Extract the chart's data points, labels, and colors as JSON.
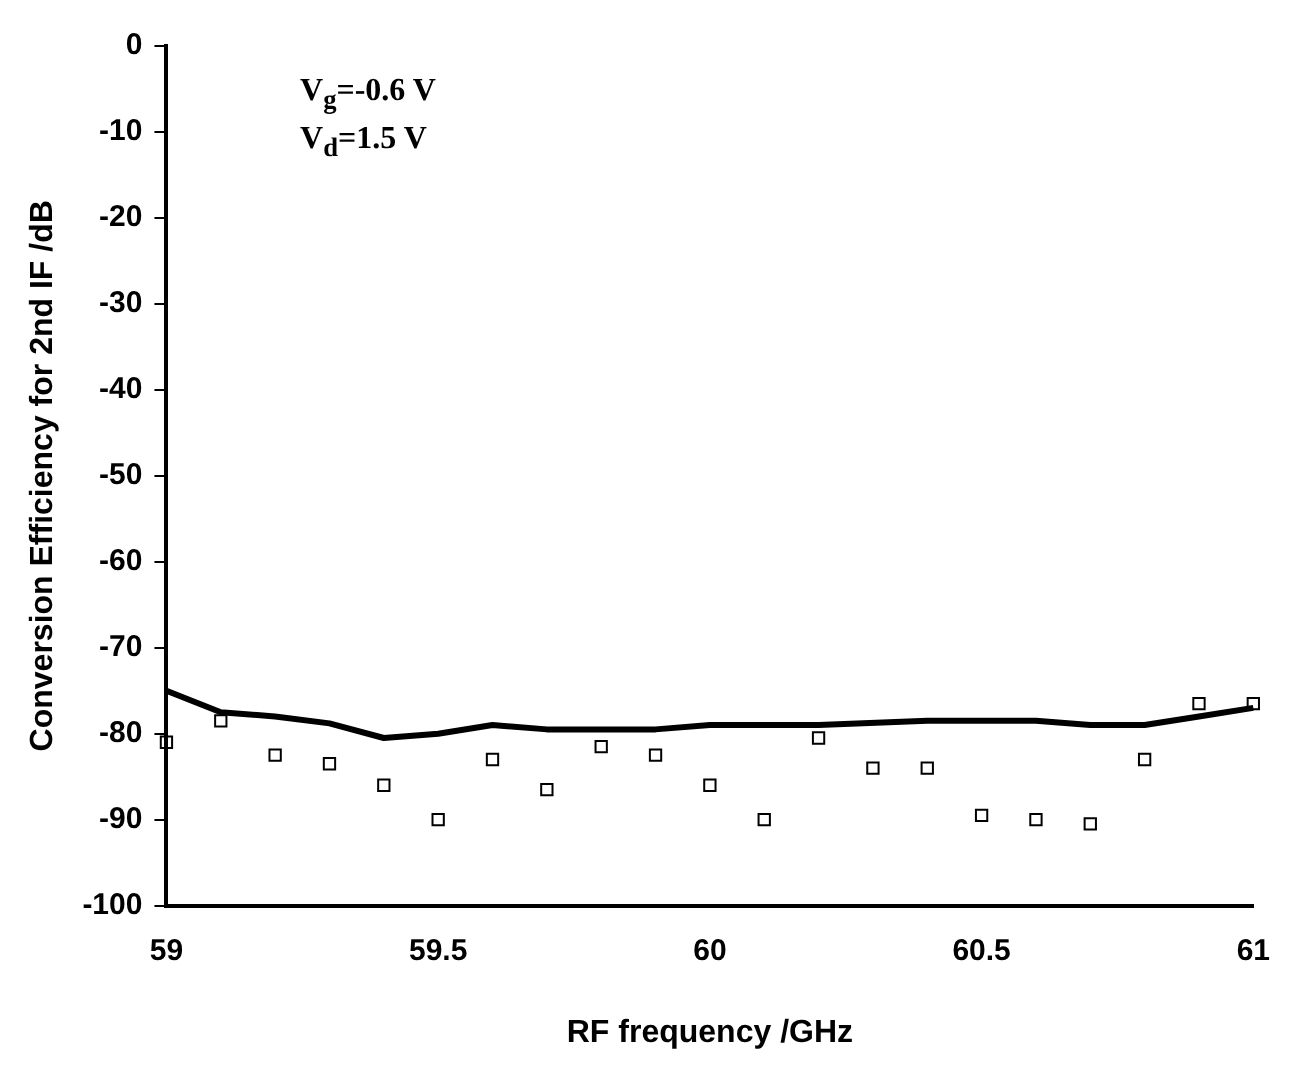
{
  "chart_data": {
    "type": "scatter",
    "xlabel": "RF frequency /GHz",
    "ylabel": "Conversion Efficiency for 2nd IF /dB",
    "annotations": [
      "V$_{g}$=-0.6 V",
      "V$_{d}$=1.5 V"
    ],
    "x": [
      59,
      59.1,
      59.2,
      59.3,
      59.4,
      59.5,
      59.6,
      59.7,
      59.8,
      59.9,
      60,
      60.1,
      60.2,
      60.3,
      60.4,
      60.5,
      60.6,
      60.7,
      60.8,
      60.9,
      61
    ],
    "series": [
      {
        "type": "line",
        "color": "#000000",
        "marker": "none",
        "x": [
          59,
          59.1,
          59.2,
          59.3,
          59.4,
          59.5,
          59.6,
          59.7,
          59.8,
          59.9,
          60,
          60.2,
          60.4,
          60.6,
          60.7,
          60.8,
          60.9,
          61
        ],
        "values": [
          -75,
          -77.5,
          -78,
          -78.8,
          -80.5,
          -80,
          -79,
          -79.5,
          -79.5,
          -79.5,
          -79,
          -79,
          -78.5,
          -78.5,
          -79,
          -79,
          -78,
          -77
        ]
      },
      {
        "type": "scatter",
        "color": "#000000",
        "marker": "square",
        "values": [
          -81,
          -78.5,
          -82.5,
          -83.5,
          -86,
          -90,
          -83,
          -86.5,
          -81.5,
          -82.5,
          -86,
          -90,
          -80.5,
          -84,
          -84,
          -89.5,
          -90,
          -90.5,
          -83,
          -76.5,
          -76.5
        ]
      }
    ],
    "xlim": [
      59,
      61
    ],
    "xticks": [
      59,
      59.5,
      60,
      60.5,
      61
    ],
    "ylim": [
      -100,
      0
    ],
    "yticks": [
      0,
      -10,
      -20,
      -30,
      -40,
      -50,
      -60,
      -70,
      -80,
      -90,
      -100
    ],
    "grid": false,
    "legend": false
  }
}
